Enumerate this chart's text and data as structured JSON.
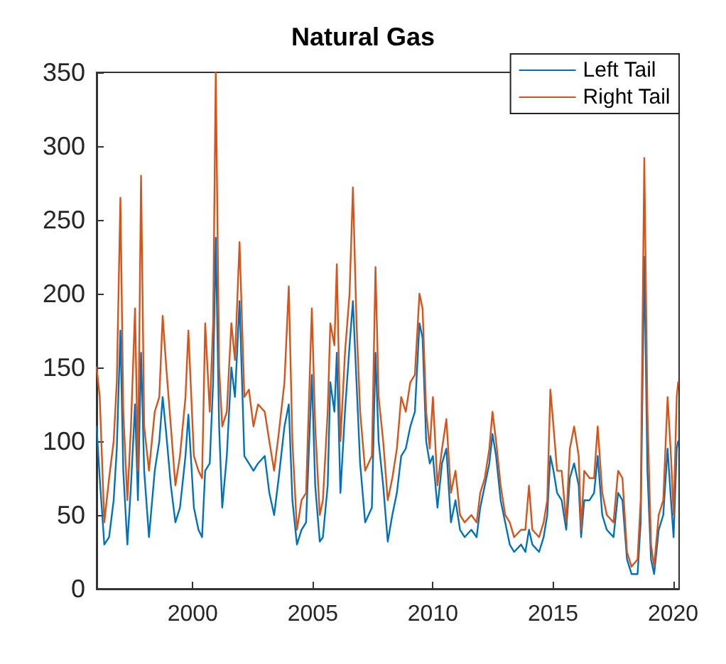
{
  "chart_data": {
    "type": "line",
    "title": "Natural Gas",
    "x": [
      1996.0,
      1996.13,
      1996.32,
      1996.52,
      1996.71,
      1996.84,
      1996.99,
      1997.11,
      1997.28,
      1997.43,
      1997.6,
      1997.72,
      1997.85,
      1997.98,
      1998.18,
      1998.42,
      1998.61,
      1998.75,
      1998.9,
      1999.09,
      1999.28,
      1999.47,
      1999.7,
      1999.82,
      2000.05,
      2000.24,
      2000.39,
      2000.52,
      2000.71,
      2000.85,
      2000.96,
      2001.1,
      2001.23,
      2001.42,
      2001.61,
      2001.76,
      2001.95,
      2002.15,
      2002.34,
      2002.53,
      2002.72,
      2003.0,
      2003.19,
      2003.39,
      2003.58,
      2003.82,
      2004.0,
      2004.15,
      2004.34,
      2004.53,
      2004.72,
      2004.96,
      2005.1,
      2005.29,
      2005.42,
      2005.62,
      2005.73,
      2005.9,
      2006.0,
      2006.15,
      2006.34,
      2006.53,
      2006.67,
      2006.82,
      2006.97,
      2007.18,
      2007.46,
      2007.61,
      2007.74,
      2007.93,
      2008.12,
      2008.31,
      2008.5,
      2008.68,
      2008.87,
      2009.06,
      2009.25,
      2009.44,
      2009.57,
      2009.72,
      2009.87,
      2010.0,
      2010.19,
      2010.38,
      2010.56,
      2010.75,
      2010.94,
      2011.13,
      2011.32,
      2011.6,
      2011.82,
      2011.97,
      2012.16,
      2012.35,
      2012.48,
      2012.63,
      2012.82,
      2013.01,
      2013.2,
      2013.38,
      2013.67,
      2013.85,
      2014.0,
      2014.14,
      2014.42,
      2014.61,
      2014.76,
      2014.89,
      2015.02,
      2015.17,
      2015.36,
      2015.55,
      2015.7,
      2015.88,
      2016.07,
      2016.17,
      2016.3,
      2016.52,
      2016.71,
      2016.86,
      2017.05,
      2017.24,
      2017.52,
      2017.71,
      2017.89,
      2018.08,
      2018.27,
      2018.52,
      2018.65,
      2018.8,
      2018.93,
      2019.08,
      2019.21,
      2019.4,
      2019.59,
      2019.77,
      2019.91,
      2020.02,
      2020.15,
      2020.21
    ],
    "series": [
      {
        "name": "Left Tail",
        "color": "#0072bd",
        "values": [
          110,
          75,
          30,
          35,
          60,
          95,
          175,
          80,
          30,
          70,
          125,
          60,
          160,
          80,
          35,
          80,
          100,
          130,
          105,
          70,
          45,
          55,
          90,
          118,
          55,
          40,
          35,
          80,
          85,
          140,
          238,
          110,
          55,
          90,
          150,
          130,
          195,
          90,
          85,
          80,
          85,
          90,
          65,
          50,
          75,
          110,
          125,
          60,
          30,
          40,
          45,
          145,
          70,
          32,
          35,
          70,
          140,
          120,
          160,
          65,
          120,
          165,
          195,
          140,
          85,
          45,
          55,
          160,
          100,
          70,
          32,
          50,
          65,
          90,
          95,
          110,
          120,
          180,
          170,
          100,
          85,
          90,
          55,
          85,
          95,
          45,
          60,
          40,
          35,
          40,
          35,
          55,
          70,
          85,
          105,
          90,
          60,
          45,
          30,
          25,
          30,
          25,
          40,
          30,
          25,
          35,
          50,
          90,
          80,
          65,
          60,
          40,
          75,
          85,
          70,
          35,
          60,
          60,
          65,
          90,
          50,
          40,
          35,
          65,
          60,
          20,
          10,
          10,
          45,
          225,
          80,
          20,
          10,
          40,
          50,
          95,
          60,
          35,
          95,
          100
        ]
      },
      {
        "name": "Right Tail",
        "color": "#d95319",
        "values": [
          150,
          130,
          45,
          75,
          100,
          140,
          265,
          120,
          60,
          110,
          190,
          80,
          280,
          110,
          80,
          120,
          130,
          185,
          150,
          110,
          70,
          90,
          130,
          175,
          90,
          80,
          75,
          180,
          120,
          180,
          350,
          150,
          110,
          120,
          180,
          155,
          235,
          130,
          135,
          110,
          125,
          120,
          100,
          80,
          105,
          140,
          205,
          100,
          40,
          60,
          65,
          190,
          110,
          50,
          60,
          120,
          180,
          165,
          220,
          100,
          160,
          200,
          272,
          180,
          120,
          80,
          90,
          218,
          130,
          100,
          60,
          75,
          95,
          130,
          120,
          140,
          145,
          200,
          190,
          120,
          95,
          130,
          70,
          95,
          115,
          65,
          80,
          50,
          45,
          50,
          45,
          65,
          75,
          95,
          120,
          100,
          70,
          50,
          45,
          35,
          40,
          40,
          70,
          40,
          35,
          45,
          60,
          135,
          110,
          80,
          80,
          45,
          95,
          110,
          90,
          40,
          80,
          75,
          75,
          110,
          65,
          50,
          45,
          80,
          75,
          25,
          15,
          20,
          60,
          292,
          120,
          30,
          15,
          50,
          60,
          130,
          90,
          50,
          130,
          140
        ]
      }
    ],
    "xlim": [
      1996,
      2020.25
    ],
    "xticks": [
      2000,
      2005,
      2010,
      2015,
      2020
    ],
    "ylim": [
      0,
      350
    ],
    "yticks": [
      0,
      50,
      100,
      150,
      200,
      250,
      300,
      350
    ],
    "grid": false,
    "legend": "top right",
    "line_style": "solid",
    "marker": "none"
  }
}
